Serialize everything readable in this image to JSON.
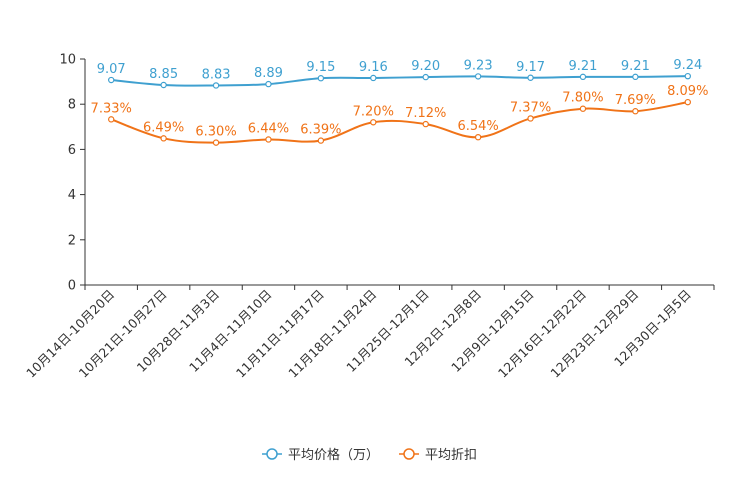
{
  "chart_data": {
    "type": "line",
    "title": "",
    "xlabel": "",
    "ylabel": "",
    "ylim": [
      0,
      10
    ],
    "yticks": [
      0,
      2,
      4,
      6,
      8,
      10
    ],
    "grid": false,
    "legend_position": "bottom-center",
    "categories": [
      "10月14日-10月20日",
      "10月21日-10月27日",
      "10月28日-11月3日",
      "11月4日-11月10日",
      "11月11日-11月17日",
      "11月18日-11月24日",
      "11月25日-12月1日",
      "12月2日-12月8日",
      "12月9日-12月15日",
      "12月16日-12月22日",
      "12月23日-12月29日",
      "12月30日-1月5日"
    ],
    "series": [
      {
        "name": "平均价格（万）",
        "color": "#3fa0d0",
        "values": [
          9.07,
          8.85,
          8.83,
          8.89,
          9.15,
          9.16,
          9.2,
          9.23,
          9.17,
          9.21,
          9.21,
          9.24
        ],
        "labels": [
          "9.07",
          "8.85",
          "8.83",
          "8.89",
          "9.15",
          "9.16",
          "9.20",
          "9.23",
          "9.17",
          "9.21",
          "9.21",
          "9.24"
        ]
      },
      {
        "name": "平均折扣",
        "color": "#f07318",
        "values": [
          7.33,
          6.49,
          6.3,
          6.44,
          6.39,
          7.2,
          7.12,
          6.54,
          7.37,
          7.8,
          7.69,
          8.09
        ],
        "labels": [
          "7.33%",
          "6.49%",
          "6.30%",
          "6.44%",
          "6.39%",
          "7.20%",
          "7.12%",
          "6.54%",
          "7.37%",
          "7.80%",
          "7.69%",
          "8.09%"
        ]
      }
    ]
  }
}
